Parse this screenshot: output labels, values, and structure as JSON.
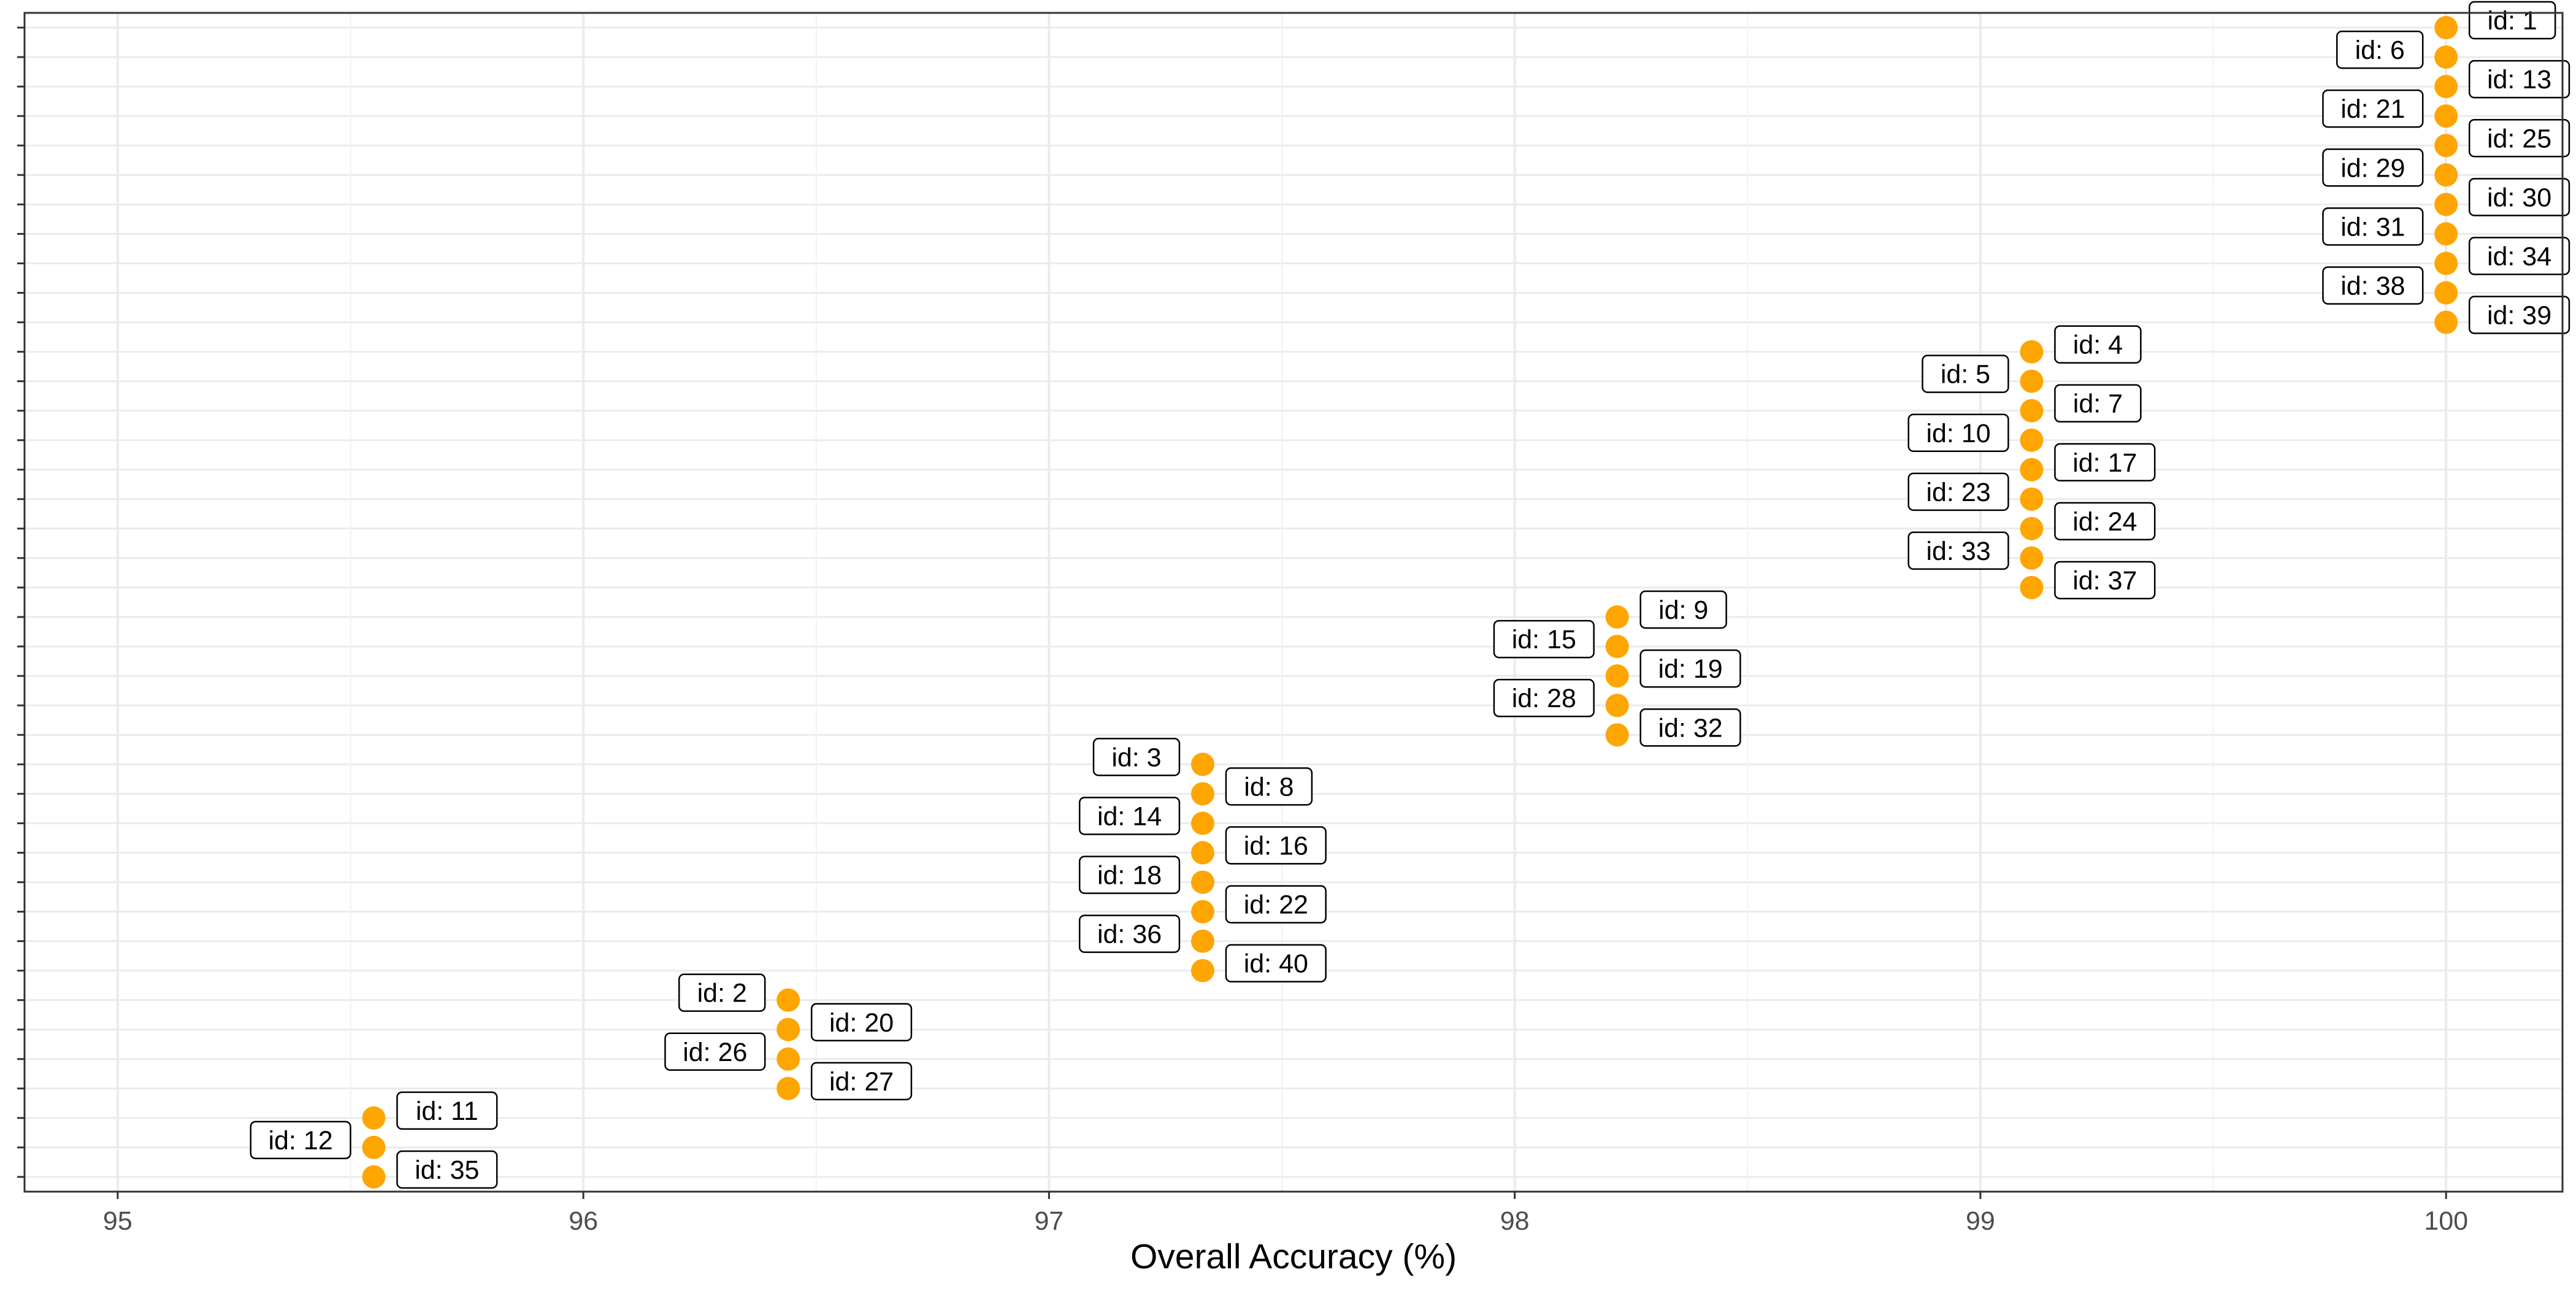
{
  "chart_data": {
    "type": "scatter",
    "xlabel": "Overall Accuracy (%)",
    "ylabel": "",
    "xlim": [
      94.8,
      100.25
    ],
    "x_ticks": [
      95,
      96,
      97,
      98,
      99,
      100
    ],
    "grid": true,
    "y_ticks_count": 40,
    "point_color": "#FFA500",
    "points": [
      {
        "label": "id: 1",
        "x": 100.0
      },
      {
        "label": "id: 2",
        "x": 96.44
      },
      {
        "label": "id: 3",
        "x": 97.33
      },
      {
        "label": "id: 4",
        "x": 99.11
      },
      {
        "label": "id: 5",
        "x": 99.11
      },
      {
        "label": "id: 6",
        "x": 100.0
      },
      {
        "label": "id: 7",
        "x": 99.11
      },
      {
        "label": "id: 8",
        "x": 97.33
      },
      {
        "label": "id: 9",
        "x": 98.22
      },
      {
        "label": "id: 10",
        "x": 99.11
      },
      {
        "label": "id: 11",
        "x": 95.55
      },
      {
        "label": "id: 12",
        "x": 95.55
      },
      {
        "label": "id: 13",
        "x": 100.0
      },
      {
        "label": "id: 14",
        "x": 97.33
      },
      {
        "label": "id: 15",
        "x": 98.22
      },
      {
        "label": "id: 16",
        "x": 97.33
      },
      {
        "label": "id: 17",
        "x": 99.11
      },
      {
        "label": "id: 18",
        "x": 97.33
      },
      {
        "label": "id: 19",
        "x": 98.22
      },
      {
        "label": "id: 20",
        "x": 96.44
      },
      {
        "label": "id: 21",
        "x": 100.0
      },
      {
        "label": "id: 22",
        "x": 97.33
      },
      {
        "label": "id: 23",
        "x": 99.11
      },
      {
        "label": "id: 24",
        "x": 99.11
      },
      {
        "label": "id: 25",
        "x": 100.0
      },
      {
        "label": "id: 26",
        "x": 96.44
      },
      {
        "label": "id: 27",
        "x": 96.44
      },
      {
        "label": "id: 28",
        "x": 98.22
      },
      {
        "label": "id: 29",
        "x": 100.0
      },
      {
        "label": "id: 30",
        "x": 100.0
      },
      {
        "label": "id: 31",
        "x": 100.0
      },
      {
        "label": "id: 32",
        "x": 98.22
      },
      {
        "label": "id: 33",
        "x": 99.11
      },
      {
        "label": "id: 34",
        "x": 100.0
      },
      {
        "label": "id: 35",
        "x": 95.55
      },
      {
        "label": "id: 36",
        "x": 97.33
      },
      {
        "label": "id: 37",
        "x": 99.11
      },
      {
        "label": "id: 38",
        "x": 100.0
      },
      {
        "label": "id: 39",
        "x": 100.0
      },
      {
        "label": "id: 40",
        "x": 97.33
      }
    ]
  }
}
